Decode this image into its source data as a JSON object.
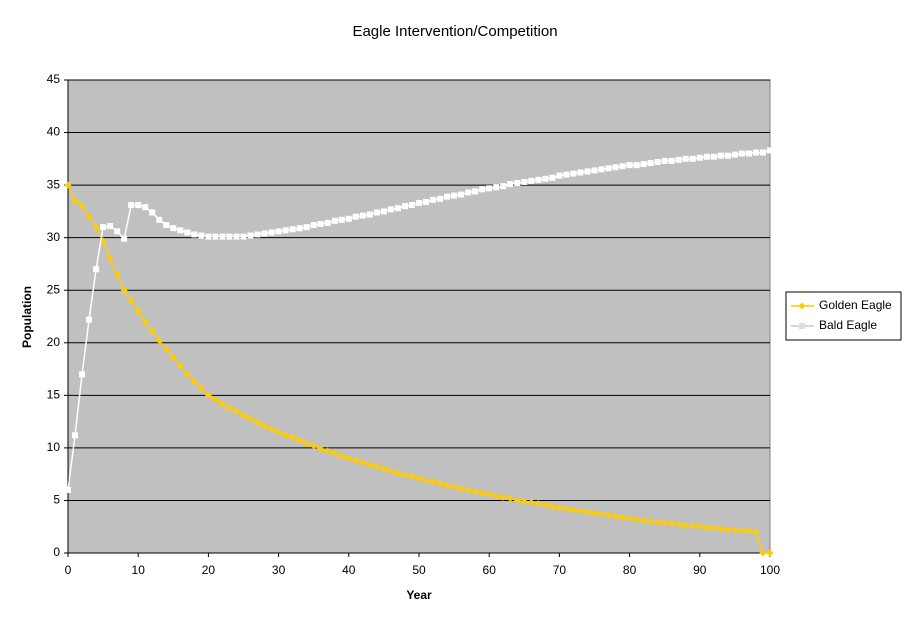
{
  "chart_data": {
    "type": "line",
    "title": "Eagle Intervention/Competition",
    "x_label": "Year",
    "y_label": "Population",
    "x": [
      0,
      1,
      2,
      3,
      4,
      5,
      6,
      7,
      8,
      9,
      10,
      11,
      12,
      13,
      14,
      15,
      16,
      17,
      18,
      19,
      20,
      21,
      22,
      23,
      24,
      25,
      26,
      27,
      28,
      29,
      30,
      31,
      32,
      33,
      34,
      35,
      36,
      37,
      38,
      39,
      40,
      41,
      42,
      43,
      44,
      45,
      46,
      47,
      48,
      49,
      50,
      51,
      52,
      53,
      54,
      55,
      56,
      57,
      58,
      59,
      60,
      61,
      62,
      63,
      64,
      65,
      66,
      67,
      68,
      69,
      70,
      71,
      72,
      73,
      74,
      75,
      76,
      77,
      78,
      79,
      80,
      81,
      82,
      83,
      84,
      85,
      86,
      87,
      88,
      89,
      90,
      91,
      92,
      93,
      94,
      95,
      96,
      97,
      98,
      99,
      100
    ],
    "series": [
      {
        "name": "Golden Eagle",
        "color": "#ffcc00",
        "marker": "diamond",
        "values": [
          35,
          33.5,
          33,
          32,
          31,
          29.7,
          28,
          26.5,
          25,
          24,
          23,
          22.0,
          21.1,
          20.2,
          19.4,
          18.6,
          17.8,
          17.0,
          16.3,
          15.7,
          15.0,
          14.6,
          14.2,
          13.8,
          13.5,
          13.1,
          12.8,
          12.4,
          12.1,
          11.8,
          11.5,
          11.2,
          11.0,
          10.7,
          10.4,
          10.2,
          9.9,
          9.7,
          9.5,
          9.2,
          9.0,
          8.8,
          8.6,
          8.4,
          8.2,
          8.0,
          7.8,
          7.6,
          7.4,
          7.3,
          7.1,
          6.9,
          6.8,
          6.6,
          6.4,
          6.3,
          6.1,
          6.0,
          5.8,
          5.7,
          5.6,
          5.4,
          5.3,
          5.2,
          5.0,
          4.9,
          4.8,
          4.7,
          4.6,
          4.4,
          4.3,
          4.2,
          4.1,
          4.0,
          3.9,
          3.8,
          3.7,
          3.6,
          3.5,
          3.4,
          3.3,
          3.2,
          3.1,
          3.0,
          2.9,
          2.9,
          2.8,
          2.7,
          2.6,
          2.6,
          2.5,
          2.4,
          2.4,
          2.3,
          2.2,
          2.2,
          2.1,
          2.1,
          2.0,
          0,
          0
        ]
      },
      {
        "name": "Bald Eagle",
        "color": "#ffffff",
        "marker": "square",
        "values": [
          6,
          11.2,
          17,
          22.2,
          27,
          31,
          31.1,
          30.6,
          29.9,
          33.1,
          33.1,
          32.9,
          32.4,
          31.7,
          31.2,
          30.9,
          30.7,
          30.5,
          30.3,
          30.2,
          30.1,
          30.1,
          30.1,
          30.1,
          30.1,
          30.1,
          30.2,
          30.3,
          30.4,
          30.5,
          30.6,
          30.7,
          30.8,
          30.9,
          31.0,
          31.2,
          31.3,
          31.4,
          31.6,
          31.7,
          31.8,
          32.0,
          32.1,
          32.2,
          32.4,
          32.5,
          32.7,
          32.8,
          33.0,
          33.1,
          33.3,
          33.4,
          33.6,
          33.7,
          33.9,
          34.0,
          34.1,
          34.3,
          34.4,
          34.6,
          34.7,
          34.8,
          34.9,
          35.1,
          35.2,
          35.3,
          35.4,
          35.5,
          35.6,
          35.7,
          35.9,
          36.0,
          36.1,
          36.2,
          36.3,
          36.4,
          36.5,
          36.6,
          36.7,
          36.8,
          36.9,
          36.9,
          37.0,
          37.1,
          37.2,
          37.3,
          37.3,
          37.4,
          37.5,
          37.5,
          37.6,
          37.7,
          37.7,
          37.8,
          37.8,
          37.9,
          38.0,
          38.0,
          38.1,
          38.1,
          38.3
        ]
      }
    ],
    "xlim": [
      0,
      100
    ],
    "xticks": [
      0,
      10,
      20,
      30,
      40,
      50,
      60,
      70,
      80,
      90,
      100
    ],
    "ylim": [
      0,
      45
    ],
    "yticks": [
      0,
      5,
      10,
      15,
      20,
      25,
      30,
      35,
      40,
      45
    ],
    "grid": true,
    "plot_background": "#c0c0c0",
    "legend": "right"
  }
}
